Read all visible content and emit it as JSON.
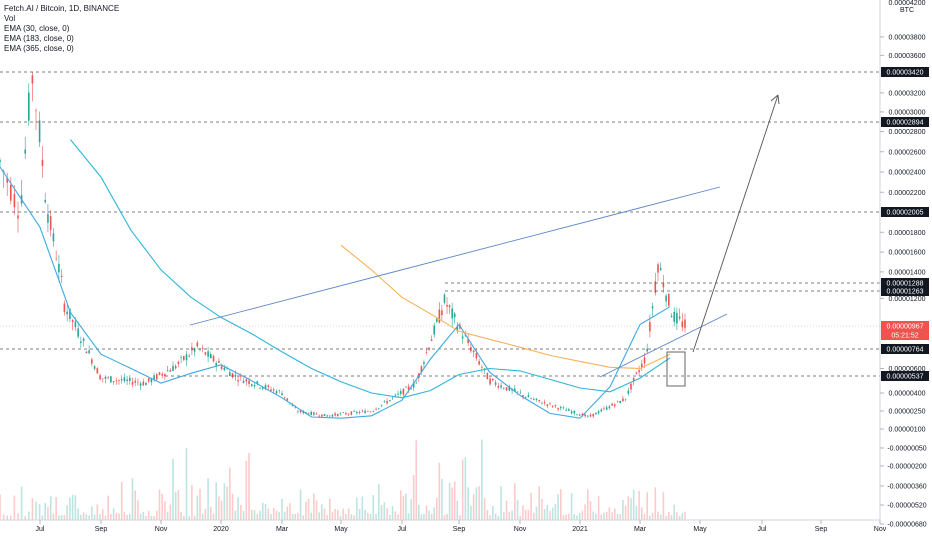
{
  "legend": {
    "title": "Fetch.AI / Bitcoin, 1D, BINANCE",
    "vol": "Vol",
    "ema30": "EMA (30, close, 0)",
    "ema183": "EMA (183, close, 0)",
    "ema365": "EMA (365, close, 0)"
  },
  "axis": {
    "unit": "BTC",
    "top_partial_label": "0.00004200",
    "y_ticks": [
      "0.00003800",
      "0.00003600",
      "0.00003200",
      "0.00003000",
      "0.00002800",
      "0.00002600",
      "0.00002400",
      "0.00002200",
      "0.00001800",
      "0.00001600",
      "0.00001400",
      "0.00001200",
      "0.00000600",
      "0.00000400",
      "0.00000250",
      "0.00000100",
      "-0.00000050",
      "-0.00000200",
      "-0.00000360",
      "-0.00000520",
      "-0.00000680"
    ],
    "x_ticks": [
      "Jul",
      "Sep",
      "Nov",
      "2020",
      "Mar",
      "May",
      "Jul",
      "Sep",
      "Nov",
      "2021",
      "Mar",
      "May",
      "Jul",
      "Sep",
      "Nov"
    ]
  },
  "level_tags": [
    "0.00003420",
    "0.00002894",
    "0.00002005",
    "0.00001288",
    "0.00001263",
    "0.00000764",
    "0.00000537"
  ],
  "current_price": {
    "value": "0.00000967",
    "countdown": "05:21:52",
    "color": "#ef5350"
  },
  "colors": {
    "up": "#26a69a",
    "down": "#ef5350",
    "ema30": "#3fa9e0",
    "ema183": "#2fb6d8",
    "ema365": "#f5b35a",
    "trendline": "#5b86c5",
    "arrow": "#555555",
    "level_line": "#555555"
  },
  "chart_data": {
    "type": "line",
    "title": "Fetch.AI / Bitcoin, 1D, BINANCE",
    "xlabel": "",
    "ylabel": "BTC",
    "ylim": [
      -6.8e-06,
      4.2e-05
    ],
    "x": [
      "2019-06",
      "2019-07",
      "2019-08",
      "2019-09",
      "2019-10",
      "2019-11",
      "2019-12",
      "2020-01",
      "2020-02",
      "2020-03",
      "2020-04",
      "2020-05",
      "2020-06",
      "2020-07",
      "2020-08",
      "2020-09",
      "2020-10",
      "2020-11",
      "2020-12",
      "2021-01",
      "2021-02",
      "2021-03",
      "2021-04"
    ],
    "series": [
      {
        "name": "EMA (30, close, 0)",
        "values": [
          2.45e-05,
          1.85e-05,
          1.08e-05,
          7.2e-06,
          6e-06,
          4.8e-06,
          5.6e-06,
          6.3e-06,
          5e-06,
          3.6e-06,
          2e-06,
          1.9e-06,
          2.1e-06,
          3.4e-06,
          6.8e-06,
          9.8e-06,
          5.7e-06,
          3.8e-06,
          2.3e-06,
          1.9e-06,
          4.5e-06,
          9.8e-06,
          1.13e-05
        ]
      },
      {
        "name": "EMA (183, close, 0)",
        "values": [
          null,
          null,
          2.72e-05,
          2.35e-05,
          1.82e-05,
          1.42e-05,
          1.21e-05,
          1.04e-05,
          9e-06,
          7.4e-06,
          6e-06,
          4.9e-06,
          4e-06,
          3.6e-06,
          4.2e-06,
          5.5e-06,
          6e-06,
          5.8e-06,
          5.1e-06,
          4.4e-06,
          4.1e-06,
          5.2e-06,
          6.9e-06
        ]
      },
      {
        "name": "EMA (365, close, 0)",
        "values": [
          null,
          null,
          null,
          null,
          null,
          null,
          null,
          null,
          null,
          null,
          null,
          1.67e-05,
          1.42e-05,
          1.21e-05,
          1.07e-05,
          9.2e-06,
          8.5e-06,
          7.8e-06,
          7.1e-06,
          6.6e-06,
          6.1e-06,
          6e-06,
          7.2e-06
        ]
      }
    ],
    "horizontal_levels": [
      3.42e-05,
      2.894e-05,
      2.005e-05,
      1.288e-05,
      1.263e-05,
      7.64e-06,
      5.37e-06
    ],
    "current_price": 9.67e-06,
    "grid": false,
    "legend_position": "top-left"
  }
}
